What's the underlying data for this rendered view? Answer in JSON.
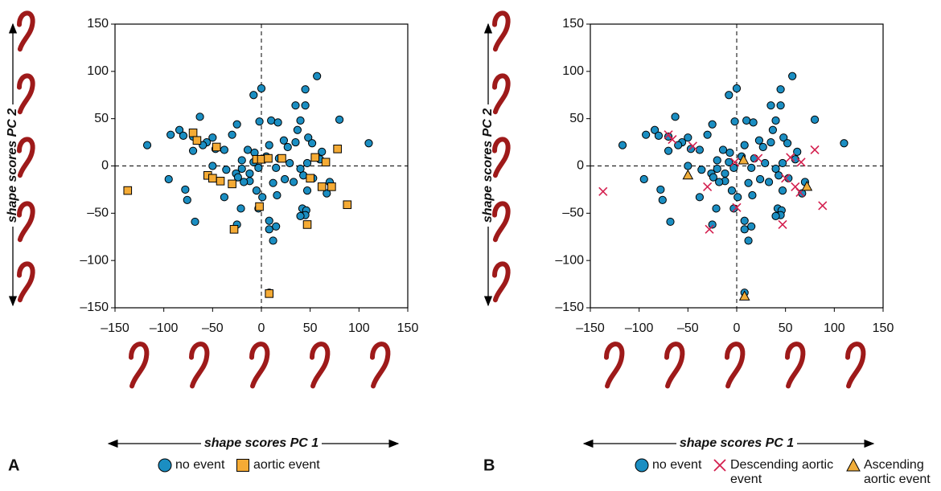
{
  "chart_data": [
    {
      "type": "scatter",
      "panel": "A",
      "xlabel": "shape scores PC 1",
      "ylabel": "shape scores PC 2",
      "xlim": [
        -150,
        150
      ],
      "ylim": [
        -150,
        150
      ],
      "xticks": [
        {
          "value": -150,
          "label": "–150"
        },
        {
          "value": -100,
          "label": "–100"
        },
        {
          "value": -50,
          "label": "–50"
        },
        0,
        50,
        100,
        150
      ],
      "yticks": [
        {
          "value": -150,
          "label": "–150"
        },
        {
          "value": -100,
          "label": "–100"
        },
        {
          "value": -50,
          "label": "–50"
        },
        0,
        50,
        100,
        150
      ],
      "series": [
        {
          "name": "no event",
          "color": "#1b8ec2",
          "marker": "circle",
          "x": [
            57,
            45,
            0,
            -8,
            35,
            45,
            80,
            -63,
            10,
            -2,
            17,
            -25,
            40,
            -84,
            -93,
            -80,
            -117,
            -70,
            -56,
            -50,
            -30,
            -60,
            -47,
            -38,
            23,
            48,
            37,
            35,
            27,
            8,
            -70,
            52,
            110,
            62,
            -7,
            -14,
            5,
            60,
            -20,
            18,
            -8,
            29,
            47,
            -50,
            -36,
            -20,
            -12,
            -26,
            -3,
            15,
            43,
            53,
            24,
            33,
            -95,
            -12,
            -18,
            12,
            -78,
            -76,
            -5,
            1,
            16,
            47,
            -38,
            67,
            -3,
            -21,
            42,
            46,
            45,
            40,
            8,
            -25,
            15,
            -68,
            12,
            8,
            8,
            70,
            40,
            -24
          ],
          "y": [
            95,
            81,
            82,
            75,
            64,
            64,
            49,
            52,
            48,
            47,
            46,
            44,
            48,
            38,
            33,
            32,
            22,
            31,
            25,
            30,
            33,
            22,
            18,
            17,
            27,
            30,
            38,
            25,
            20,
            22,
            16,
            24,
            24,
            15,
            14,
            17,
            10,
            7,
            6,
            8,
            4,
            3,
            3,
            0,
            -4,
            -3,
            -8,
            -8,
            -2,
            -2,
            -10,
            -13,
            -14,
            -17,
            -14,
            -16,
            -17,
            -18,
            -25,
            -36,
            -26,
            -33,
            -31,
            -26,
            -33,
            -29,
            -45,
            -45,
            -45,
            -47,
            -52,
            -53,
            -58,
            -62,
            -64,
            -59,
            -79,
            -67,
            -134,
            -17,
            -3,
            -12
          ]
        },
        {
          "name": "aortic event",
          "color": "#f5ab35",
          "marker": "square",
          "x": [
            -137,
            -70,
            -66,
            -46,
            -55,
            -50,
            -42,
            -30,
            -28,
            -5,
            0,
            7,
            21,
            50,
            55,
            62,
            66,
            72,
            78,
            88,
            -2,
            47,
            8
          ],
          "y": [
            -26,
            35,
            27,
            20,
            -10,
            -13,
            -16,
            -19,
            -67,
            7,
            7,
            8,
            8,
            -13,
            9,
            -22,
            4,
            -22,
            18,
            -41,
            -43,
            -62,
            -135
          ]
        }
      ]
    },
    {
      "type": "scatter",
      "panel": "B",
      "xlabel": "shape scores PC 1",
      "ylabel": "shape scores PC 2",
      "xlim": [
        -150,
        150
      ],
      "ylim": [
        -150,
        150
      ],
      "xticks": [
        {
          "value": -150,
          "label": "–150"
        },
        {
          "value": -100,
          "label": "–100"
        },
        {
          "value": -50,
          "label": "–50"
        },
        0,
        50,
        100,
        150
      ],
      "yticks": [
        {
          "value": -150,
          "label": "–150"
        },
        {
          "value": -100,
          "label": "–100"
        },
        {
          "value": -50,
          "label": "–50"
        },
        0,
        50,
        100,
        150
      ],
      "series": [
        {
          "name": "no event",
          "color": "#1b8ec2",
          "marker": "circle",
          "x": [
            57,
            45,
            0,
            -8,
            35,
            45,
            80,
            -63,
            10,
            -2,
            17,
            -25,
            40,
            -84,
            -93,
            -80,
            -117,
            -70,
            -56,
            -50,
            -30,
            -60,
            -47,
            -38,
            23,
            48,
            37,
            35,
            27,
            8,
            -70,
            52,
            110,
            62,
            -7,
            -14,
            5,
            60,
            -20,
            18,
            -8,
            29,
            47,
            -50,
            -36,
            -20,
            -12,
            -26,
            -3,
            15,
            43,
            53,
            24,
            33,
            -95,
            -12,
            -18,
            12,
            -78,
            -76,
            -5,
            1,
            16,
            47,
            -38,
            67,
            -3,
            -21,
            42,
            46,
            45,
            40,
            8,
            -25,
            15,
            -68,
            12,
            8,
            8,
            70,
            40,
            -24
          ],
          "y": [
            95,
            81,
            82,
            75,
            64,
            64,
            49,
            52,
            48,
            47,
            46,
            44,
            48,
            38,
            33,
            32,
            22,
            31,
            25,
            30,
            33,
            22,
            18,
            17,
            27,
            30,
            38,
            25,
            20,
            22,
            16,
            24,
            24,
            15,
            14,
            17,
            10,
            7,
            6,
            8,
            4,
            3,
            3,
            0,
            -4,
            -3,
            -8,
            -8,
            -2,
            -2,
            -10,
            -13,
            -14,
            -17,
            -14,
            -16,
            -17,
            -18,
            -25,
            -36,
            -26,
            -33,
            -31,
            -26,
            -33,
            -29,
            -45,
            -45,
            -45,
            -47,
            -52,
            -53,
            -58,
            -62,
            -64,
            -59,
            -79,
            -67,
            -134,
            -17,
            -3,
            -12
          ]
        },
        {
          "name": "Descending aortic event",
          "color": "#d4204f",
          "marker": "cross",
          "x": [
            -137,
            -70,
            -66,
            -45,
            -30,
            -28,
            -2,
            0,
            22,
            50,
            55,
            60,
            66,
            80,
            88,
            47,
            65
          ],
          "y": [
            -27,
            33,
            28,
            21,
            -22,
            -67,
            4,
            -44,
            8,
            -13,
            9,
            -22,
            4,
            17,
            -42,
            -62,
            -28
          ]
        },
        {
          "name": "Ascending aortic event",
          "color": "#f0ad3a",
          "marker": "triangle",
          "x": [
            -50,
            7,
            72,
            8
          ],
          "y": [
            -10,
            6,
            -22,
            -138
          ]
        }
      ]
    }
  ]
}
